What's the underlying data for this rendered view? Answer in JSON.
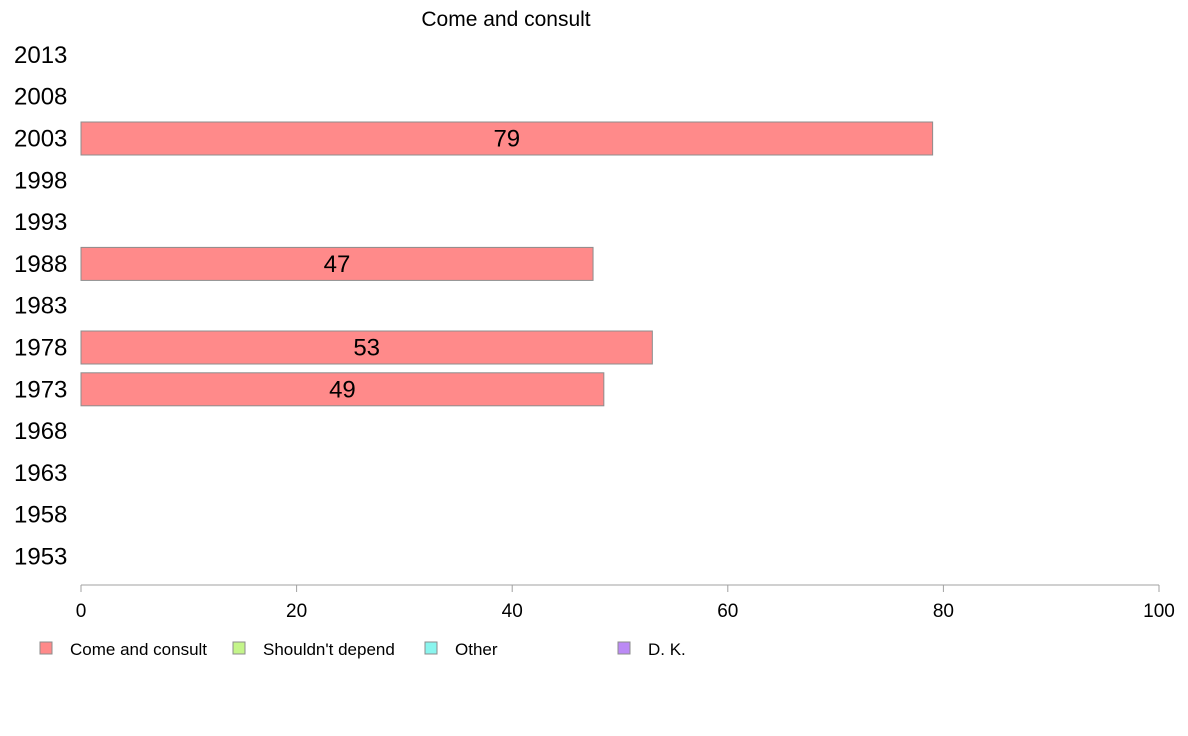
{
  "chart_data": {
    "type": "bar",
    "orientation": "horizontal",
    "title": "Come and consult",
    "xlabel": "",
    "ylabel": "",
    "xlim": [
      0,
      100
    ],
    "xticks": [
      0,
      20,
      40,
      60,
      80,
      100
    ],
    "grid": false,
    "legend_position": "bottom",
    "categories": [
      "2013",
      "2008",
      "2003",
      "1998",
      "1993",
      "1988",
      "1983",
      "1978",
      "1973",
      "1968",
      "1963",
      "1958",
      "1953"
    ],
    "series": [
      {
        "name": "Come and consult",
        "color": "#ff8a8a",
        "values": [
          null,
          null,
          79,
          null,
          null,
          47.5,
          null,
          53,
          48.5,
          null,
          null,
          null,
          null
        ],
        "labels": [
          "",
          "",
          "79",
          "",
          "",
          "47",
          "",
          "53",
          "49",
          "",
          "",
          "",
          ""
        ]
      },
      {
        "name": "Shouldn't depend",
        "color": "#c4f58a",
        "values": [
          null,
          null,
          null,
          null,
          null,
          null,
          null,
          null,
          null,
          null,
          null,
          null,
          null
        ]
      },
      {
        "name": "Other",
        "color": "#8af5ee",
        "values": [
          null,
          null,
          null,
          null,
          null,
          null,
          null,
          null,
          null,
          null,
          null,
          null,
          null
        ]
      },
      {
        "name": "D. K.",
        "color": "#bb8af5",
        "values": [
          null,
          null,
          null,
          null,
          null,
          null,
          null,
          null,
          null,
          null,
          null,
          null,
          null
        ]
      }
    ]
  }
}
